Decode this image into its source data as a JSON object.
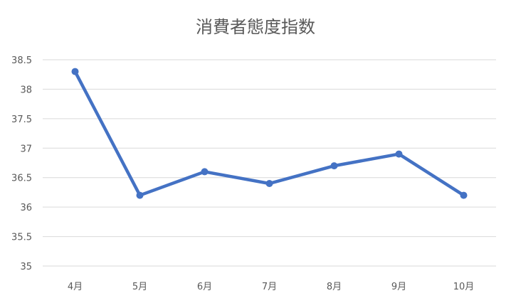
{
  "chart_data": {
    "type": "line",
    "title": "消費者態度指数",
    "xlabel": "",
    "ylabel": "",
    "categories": [
      "4月",
      "5月",
      "6月",
      "7月",
      "8月",
      "9月",
      "10月"
    ],
    "series": [
      {
        "values": [
          38.3,
          36.2,
          36.6,
          36.4,
          36.7,
          36.9,
          36.2
        ]
      }
    ],
    "ylim": [
      35,
      38.5
    ],
    "yticks": [
      "35",
      "35.5",
      "36",
      "36.5",
      "37",
      "37.5",
      "38",
      "38.5"
    ],
    "grid": true,
    "legend": "none",
    "colors": {
      "line": "#4472C4",
      "grid": "#D9D9D9",
      "text": "#595959"
    }
  }
}
